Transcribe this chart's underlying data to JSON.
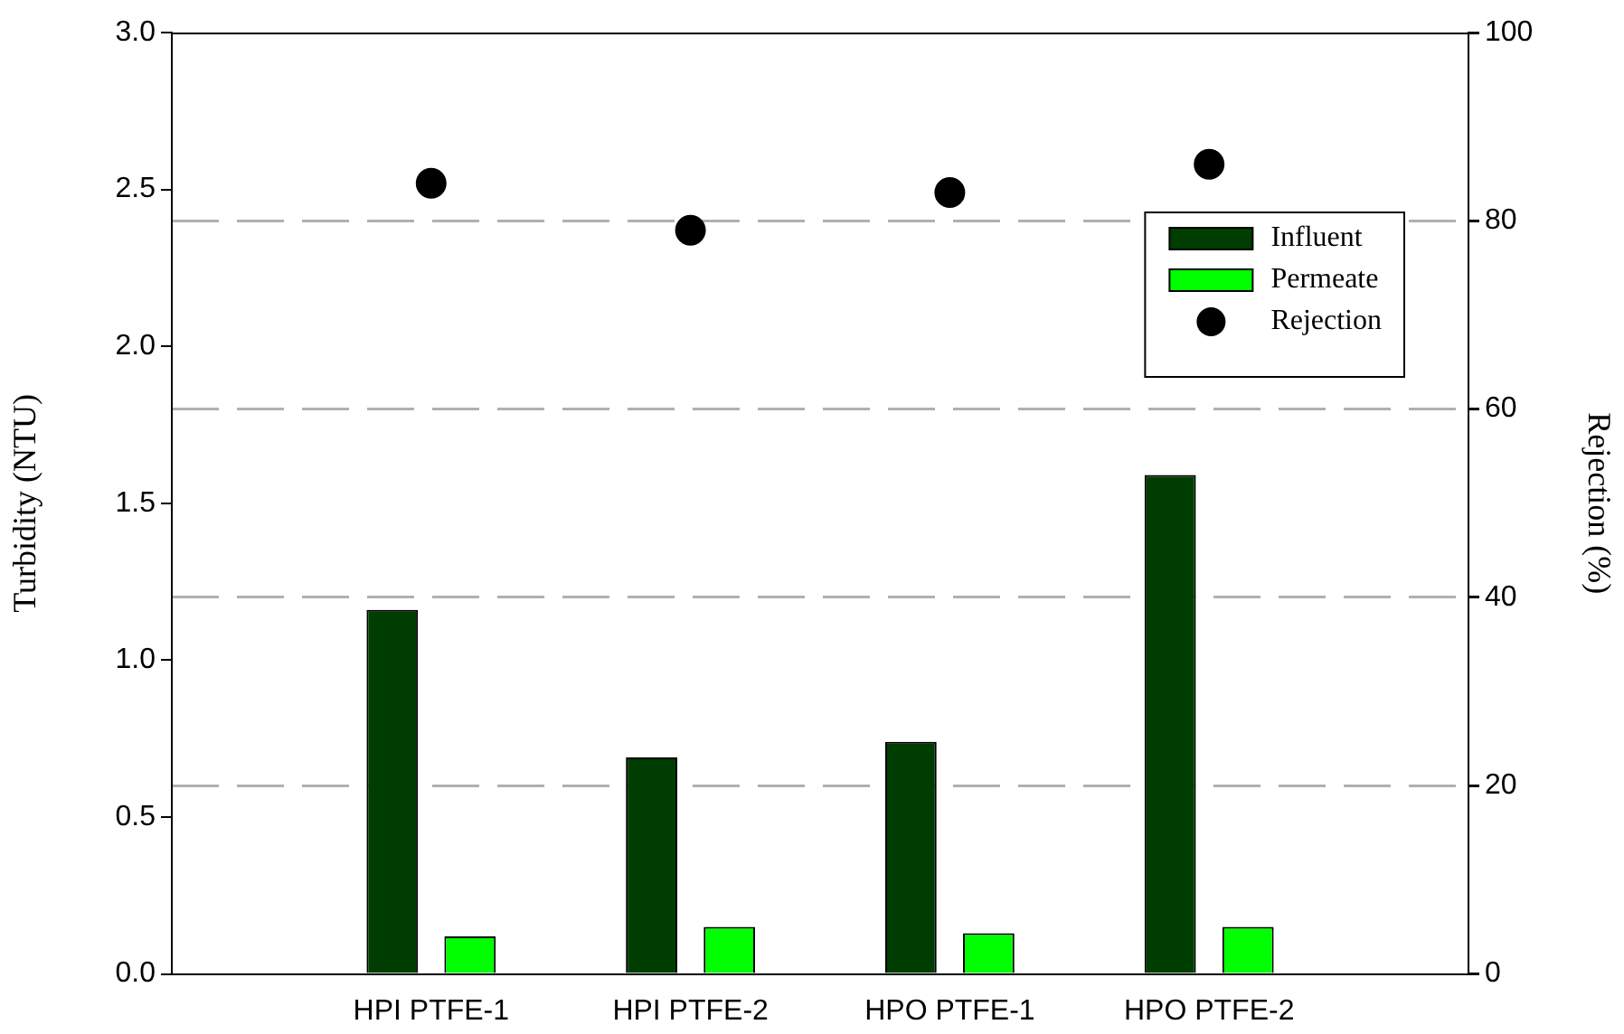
{
  "chart_data": {
    "type": "bar",
    "ylabel": "Turbidity (NTU)",
    "y2label": "Rejection (%)",
    "categories": [
      "HPI PTFE-1",
      "HPI PTFE-2",
      "HPO PTFE-1",
      "HPO PTFE-2"
    ],
    "series": [
      {
        "name": "Influent",
        "color": "#003d00",
        "values": [
          1.16,
          0.69,
          0.74,
          1.59
        ]
      },
      {
        "name": "Permeate",
        "color": "#00ff00",
        "values": [
          0.12,
          0.15,
          0.13,
          0.15
        ]
      },
      {
        "name": "Rejection",
        "type": "scatter",
        "axis": "y2",
        "color": "#000000",
        "values": [
          84,
          79,
          83,
          86
        ]
      }
    ],
    "ylim": [
      0,
      3
    ],
    "yticks": [
      {
        "value": 0,
        "label": "0.0"
      },
      {
        "value": 0.5,
        "label": "0.5"
      },
      {
        "value": 1,
        "label": "1.0"
      },
      {
        "value": 1.5,
        "label": "1.5"
      },
      {
        "value": 2,
        "label": "2.0"
      },
      {
        "value": 2.5,
        "label": "2.5"
      },
      {
        "value": 3,
        "label": "3.0"
      }
    ],
    "y2lim": [
      0,
      100
    ],
    "y2ticks": [
      0,
      20,
      40,
      60,
      80,
      100
    ],
    "grid": "y2",
    "legend": "top right",
    "marker": "circle"
  }
}
